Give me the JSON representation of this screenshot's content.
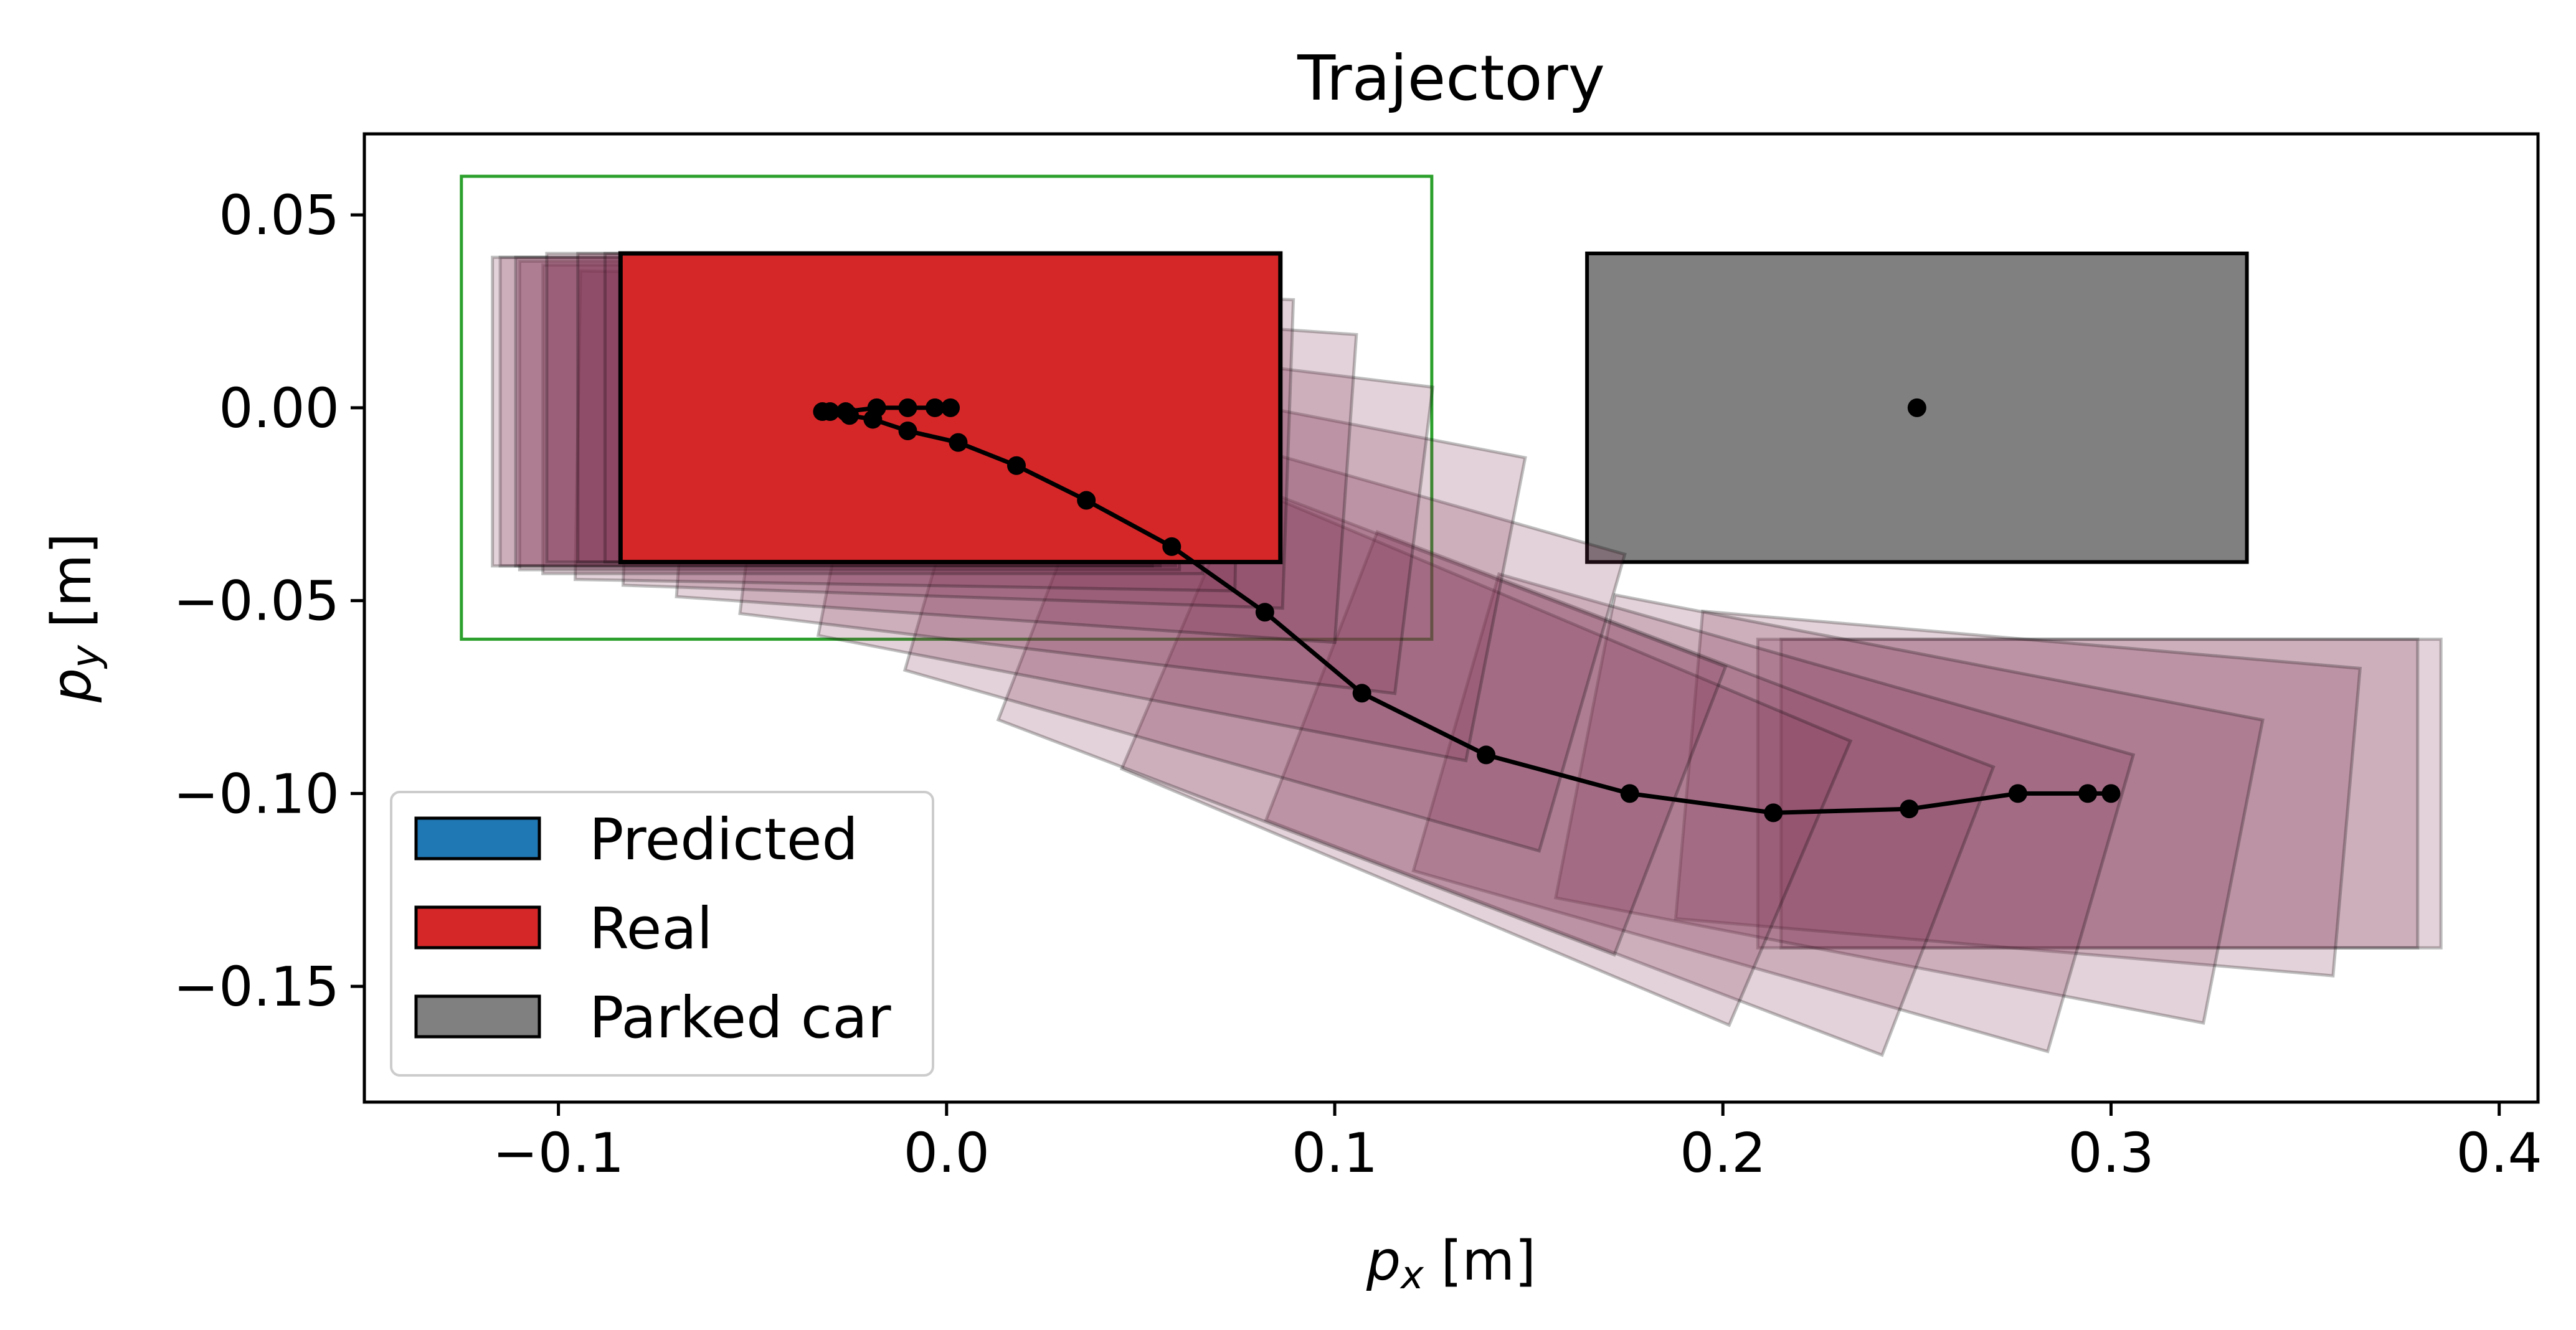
{
  "chart_data": {
    "type": "scatter",
    "title": "Trajectory",
    "xlabel": {
      "sym": "p",
      "sub": "x",
      "unit": "[m]"
    },
    "ylabel": {
      "sym": "p",
      "sub": "y",
      "unit": "[m]"
    },
    "xlim": [
      -0.15,
      0.41
    ],
    "ylim": [
      -0.18,
      0.071
    ],
    "xticks": [
      -0.1,
      0.0,
      0.1,
      0.2,
      0.3,
      0.4
    ],
    "xtick_labels": [
      "−0.1",
      "0.0",
      "0.1",
      "0.2",
      "0.3",
      "0.4"
    ],
    "yticks": [
      0.05,
      0.0,
      -0.05,
      -0.1,
      -0.15
    ],
    "ytick_labels": [
      "0.05",
      "0.00",
      "−0.05",
      "−0.10",
      "−0.15"
    ],
    "grid": false,
    "legend": {
      "placement": "lower-left",
      "entries": [
        {
          "label": "Predicted",
          "color": "#1f77b4"
        },
        {
          "label": "Real",
          "color": "#d62728"
        },
        {
          "label": "Parked car",
          "color": "#808080"
        }
      ]
    },
    "colors": {
      "real": "#d62728",
      "trail": "#7f3050",
      "parked": "#808080",
      "target_box": "#2ca02c",
      "trajectory": "#000000"
    },
    "target_region": {
      "x": [
        -0.125,
        0.125
      ],
      "y": [
        -0.06,
        0.06
      ]
    },
    "parked_car": {
      "center": [
        0.25,
        0.0
      ],
      "length": 0.17,
      "width": 0.08,
      "heading_deg": 0
    },
    "vehicle_size": {
      "length": 0.17,
      "width": 0.08
    },
    "trajectory": [
      {
        "x": 0.3,
        "y": -0.1,
        "heading_deg": 0
      },
      {
        "x": 0.294,
        "y": -0.1,
        "heading_deg": 0
      },
      {
        "x": 0.276,
        "y": -0.1,
        "heading_deg": -5
      },
      {
        "x": 0.248,
        "y": -0.104,
        "heading_deg": -11
      },
      {
        "x": 0.213,
        "y": -0.105,
        "heading_deg": -16
      },
      {
        "x": 0.176,
        "y": -0.1,
        "heading_deg": -21
      },
      {
        "x": 0.139,
        "y": -0.09,
        "heading_deg": -23
      },
      {
        "x": 0.107,
        "y": -0.074,
        "heading_deg": -21
      },
      {
        "x": 0.082,
        "y": -0.053,
        "heading_deg": -16
      },
      {
        "x": 0.058,
        "y": -0.036,
        "heading_deg": -11
      },
      {
        "x": 0.036,
        "y": -0.024,
        "heading_deg": -7
      },
      {
        "x": 0.018,
        "y": -0.015,
        "heading_deg": -4
      },
      {
        "x": 0.003,
        "y": -0.009,
        "heading_deg": -2
      },
      {
        "x": -0.01,
        "y": -0.006,
        "heading_deg": -1
      },
      {
        "x": -0.019,
        "y": -0.003,
        "heading_deg": 0
      },
      {
        "x": -0.025,
        "y": -0.002,
        "heading_deg": 0
      },
      {
        "x": -0.03,
        "y": -0.001,
        "heading_deg": 0
      },
      {
        "x": -0.032,
        "y": -0.001,
        "heading_deg": 0
      },
      {
        "x": -0.026,
        "y": -0.001,
        "heading_deg": 0
      },
      {
        "x": -0.018,
        "y": 0.0,
        "heading_deg": 0
      },
      {
        "x": -0.01,
        "y": 0.0,
        "heading_deg": 0
      },
      {
        "x": -0.003,
        "y": 0.0,
        "heading_deg": 0
      },
      {
        "x": 0.001,
        "y": 0.0,
        "heading_deg": 0
      }
    ]
  }
}
